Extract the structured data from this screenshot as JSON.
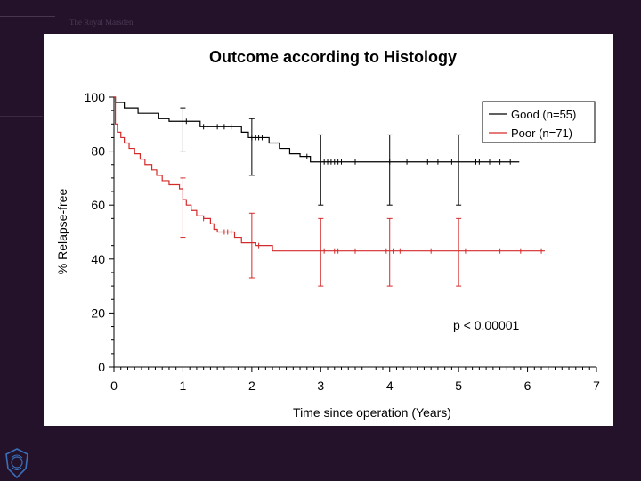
{
  "slide": {
    "header_text": "The Royal Marsden"
  },
  "chart_data": {
    "type": "line",
    "title": "Outcome according to Histology",
    "xlabel": "Time since operation (Years)",
    "ylabel": "% Relapse-free",
    "xlim": [
      0,
      7
    ],
    "ylim": [
      0,
      100
    ],
    "xticks": [
      "0",
      "1",
      "2",
      "3",
      "4",
      "5",
      "6",
      "7"
    ],
    "yticks": [
      "0",
      "20",
      "40",
      "60",
      "80",
      "100"
    ],
    "grid": false,
    "legend_position": "top-right",
    "annotation": "p < 0.00001",
    "series": [
      {
        "name": "Good (n=55)",
        "color": "#000000",
        "step": true,
        "points": [
          [
            0,
            100
          ],
          [
            0.02,
            98
          ],
          [
            0.15,
            96
          ],
          [
            0.35,
            94
          ],
          [
            0.65,
            92
          ],
          [
            0.8,
            91
          ],
          [
            1.25,
            89
          ],
          [
            1.85,
            87
          ],
          [
            1.95,
            85
          ],
          [
            2.25,
            83
          ],
          [
            2.4,
            81
          ],
          [
            2.55,
            79
          ],
          [
            2.7,
            78
          ],
          [
            2.85,
            76
          ],
          [
            5.88,
            76
          ]
        ],
        "censor_x": [
          1.05,
          1.3,
          1.35,
          1.5,
          1.6,
          1.7,
          2.0,
          2.05,
          2.1,
          2.15,
          2.8,
          3.05,
          3.1,
          3.15,
          3.2,
          3.25,
          3.3,
          3.5,
          3.7,
          4.0,
          4.25,
          4.55,
          4.7,
          4.9,
          5.25,
          5.3,
          5.45,
          5.6,
          5.75
        ],
        "error_bars": [
          {
            "x": 1,
            "y": 91,
            "lo": 80,
            "hi": 96
          },
          {
            "x": 2,
            "y": 84,
            "lo": 71,
            "hi": 92
          },
          {
            "x": 3,
            "y": 76,
            "lo": 60,
            "hi": 86
          },
          {
            "x": 4,
            "y": 76,
            "lo": 60,
            "hi": 86
          },
          {
            "x": 5,
            "y": 76,
            "lo": 60,
            "hi": 86
          }
        ]
      },
      {
        "name": "Poor (n=71)",
        "color": "#d42a2a",
        "step": true,
        "points": [
          [
            0,
            100
          ],
          [
            0.02,
            90
          ],
          [
            0.05,
            87
          ],
          [
            0.1,
            85
          ],
          [
            0.15,
            83
          ],
          [
            0.22,
            81
          ],
          [
            0.3,
            79
          ],
          [
            0.38,
            77
          ],
          [
            0.45,
            75
          ],
          [
            0.55,
            73
          ],
          [
            0.62,
            71
          ],
          [
            0.7,
            69
          ],
          [
            0.8,
            67.5
          ],
          [
            0.95,
            66
          ],
          [
            1.0,
            62
          ],
          [
            1.05,
            60
          ],
          [
            1.12,
            58
          ],
          [
            1.2,
            56
          ],
          [
            1.3,
            55
          ],
          [
            1.4,
            53
          ],
          [
            1.45,
            51
          ],
          [
            1.5,
            50
          ],
          [
            1.75,
            48
          ],
          [
            1.85,
            46
          ],
          [
            2.05,
            45
          ],
          [
            2.3,
            43
          ],
          [
            6.25,
            43
          ]
        ],
        "censor_x": [
          1.3,
          1.6,
          1.65,
          1.7,
          2.1,
          3.05,
          3.2,
          3.25,
          3.5,
          3.7,
          3.95,
          4.05,
          4.15,
          4.6,
          5.1,
          5.6,
          5.9,
          6.2
        ],
        "error_bars": [
          {
            "x": 1,
            "y": 60,
            "lo": 48,
            "hi": 70
          },
          {
            "x": 2,
            "y": 45,
            "lo": 33,
            "hi": 57
          },
          {
            "x": 3,
            "y": 43,
            "lo": 30,
            "hi": 55
          },
          {
            "x": 4,
            "y": 43,
            "lo": 30,
            "hi": 55
          },
          {
            "x": 5,
            "y": 43,
            "lo": 30,
            "hi": 55
          }
        ]
      }
    ]
  }
}
